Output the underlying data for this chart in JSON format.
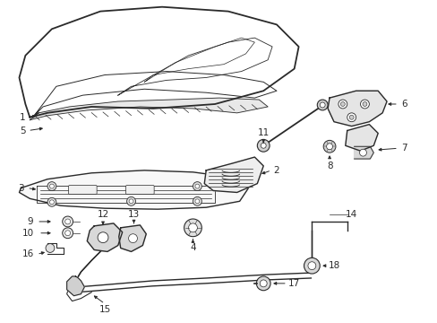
{
  "background_color": "#ffffff",
  "line_color": "#2a2a2a",
  "lw": 1.0,
  "fig_w": 4.89,
  "fig_h": 3.6,
  "dpi": 100
}
